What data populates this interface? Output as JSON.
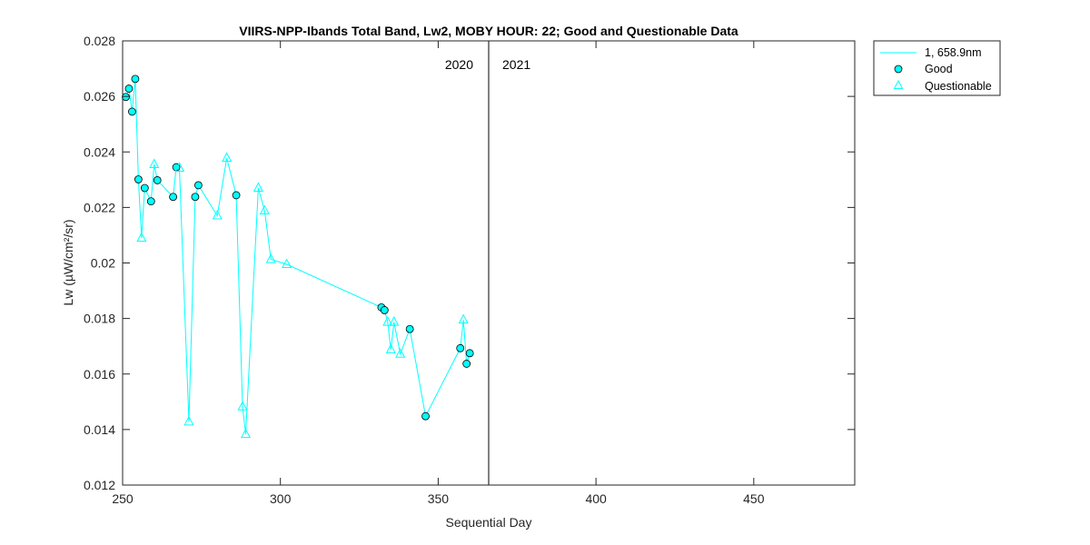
{
  "chart_data": {
    "type": "line",
    "title": "VIIRS-NPP-Ibands Total Band,  Lw2, MOBY HOUR: 22;  Good and Questionable Data",
    "xlabel": "Sequential Day",
    "ylabel": "Lw (µW/cm²/sr)",
    "xlim": [
      250,
      482
    ],
    "ylim": [
      0.012,
      0.028
    ],
    "xticks": [
      250,
      300,
      350,
      400,
      450
    ],
    "xtick_labels": [
      "250",
      "300",
      "350",
      "400",
      "450"
    ],
    "yticks": [
      0.012,
      0.014,
      0.016,
      0.018,
      0.02,
      0.022,
      0.024,
      0.026,
      0.028
    ],
    "ytick_labels": [
      "0.012",
      "0.014",
      "0.016",
      "0.018",
      "0.02",
      "0.022",
      "0.024",
      "0.026",
      "0.028"
    ],
    "grid": false,
    "legend_position": "outside-top-right",
    "series_color": "#00FFFF",
    "divider": {
      "x": 366,
      "label_left": "2020",
      "label_right": "2021"
    },
    "line_series": {
      "name": "1, 658.9nm",
      "points": [
        [
          251,
          0.02598
        ],
        [
          252,
          0.02628
        ],
        [
          253,
          0.02545
        ],
        [
          254,
          0.02663
        ],
        [
          255,
          0.02301
        ],
        [
          256,
          0.0209
        ],
        [
          257,
          0.0227
        ],
        [
          259,
          0.02222
        ],
        [
          260,
          0.02355
        ],
        [
          261,
          0.02298
        ],
        [
          266,
          0.02238
        ],
        [
          267,
          0.02345
        ],
        [
          268,
          0.02342
        ],
        [
          271,
          0.01428
        ],
        [
          273,
          0.02238
        ],
        [
          274,
          0.0228
        ],
        [
          280,
          0.0217
        ],
        [
          283,
          0.02378
        ],
        [
          286,
          0.02244
        ],
        [
          288,
          0.01482
        ],
        [
          289,
          0.01383
        ],
        [
          293,
          0.0227
        ],
        [
          295,
          0.02188
        ],
        [
          297,
          0.02013
        ],
        [
          302,
          0.01995
        ],
        [
          332,
          0.0184
        ],
        [
          333,
          0.0183
        ],
        [
          334,
          0.01787
        ],
        [
          335,
          0.01688
        ],
        [
          336,
          0.01787
        ],
        [
          338,
          0.01672
        ],
        [
          341,
          0.01762
        ],
        [
          346,
          0.01448
        ],
        [
          357,
          0.01693
        ],
        [
          358,
          0.01795
        ],
        [
          359,
          0.01637
        ],
        [
          360,
          0.01675
        ]
      ]
    },
    "good_points": {
      "name": "Good",
      "points": [
        [
          251,
          0.02598
        ],
        [
          252,
          0.02628
        ],
        [
          253,
          0.02545
        ],
        [
          254,
          0.02663
        ],
        [
          255,
          0.02301
        ],
        [
          257,
          0.0227
        ],
        [
          259,
          0.02222
        ],
        [
          261,
          0.02298
        ],
        [
          266,
          0.02238
        ],
        [
          267,
          0.02345
        ],
        [
          273,
          0.02238
        ],
        [
          274,
          0.0228
        ],
        [
          286,
          0.02244
        ],
        [
          332,
          0.0184
        ],
        [
          333,
          0.0183
        ],
        [
          341,
          0.01762
        ],
        [
          346,
          0.01448
        ],
        [
          357,
          0.01693
        ],
        [
          359,
          0.01637
        ],
        [
          360,
          0.01675
        ]
      ]
    },
    "questionable_points": {
      "name": "Questionable",
      "points": [
        [
          256,
          0.0209
        ],
        [
          260,
          0.02355
        ],
        [
          268,
          0.02342
        ],
        [
          271,
          0.01428
        ],
        [
          280,
          0.0217
        ],
        [
          283,
          0.02378
        ],
        [
          288,
          0.01482
        ],
        [
          289,
          0.01383
        ],
        [
          293,
          0.0227
        ],
        [
          295,
          0.02188
        ],
        [
          297,
          0.02013
        ],
        [
          302,
          0.01995
        ],
        [
          334,
          0.01787
        ],
        [
          335,
          0.01688
        ],
        [
          336,
          0.01787
        ],
        [
          338,
          0.01672
        ],
        [
          358,
          0.01795
        ]
      ]
    }
  }
}
